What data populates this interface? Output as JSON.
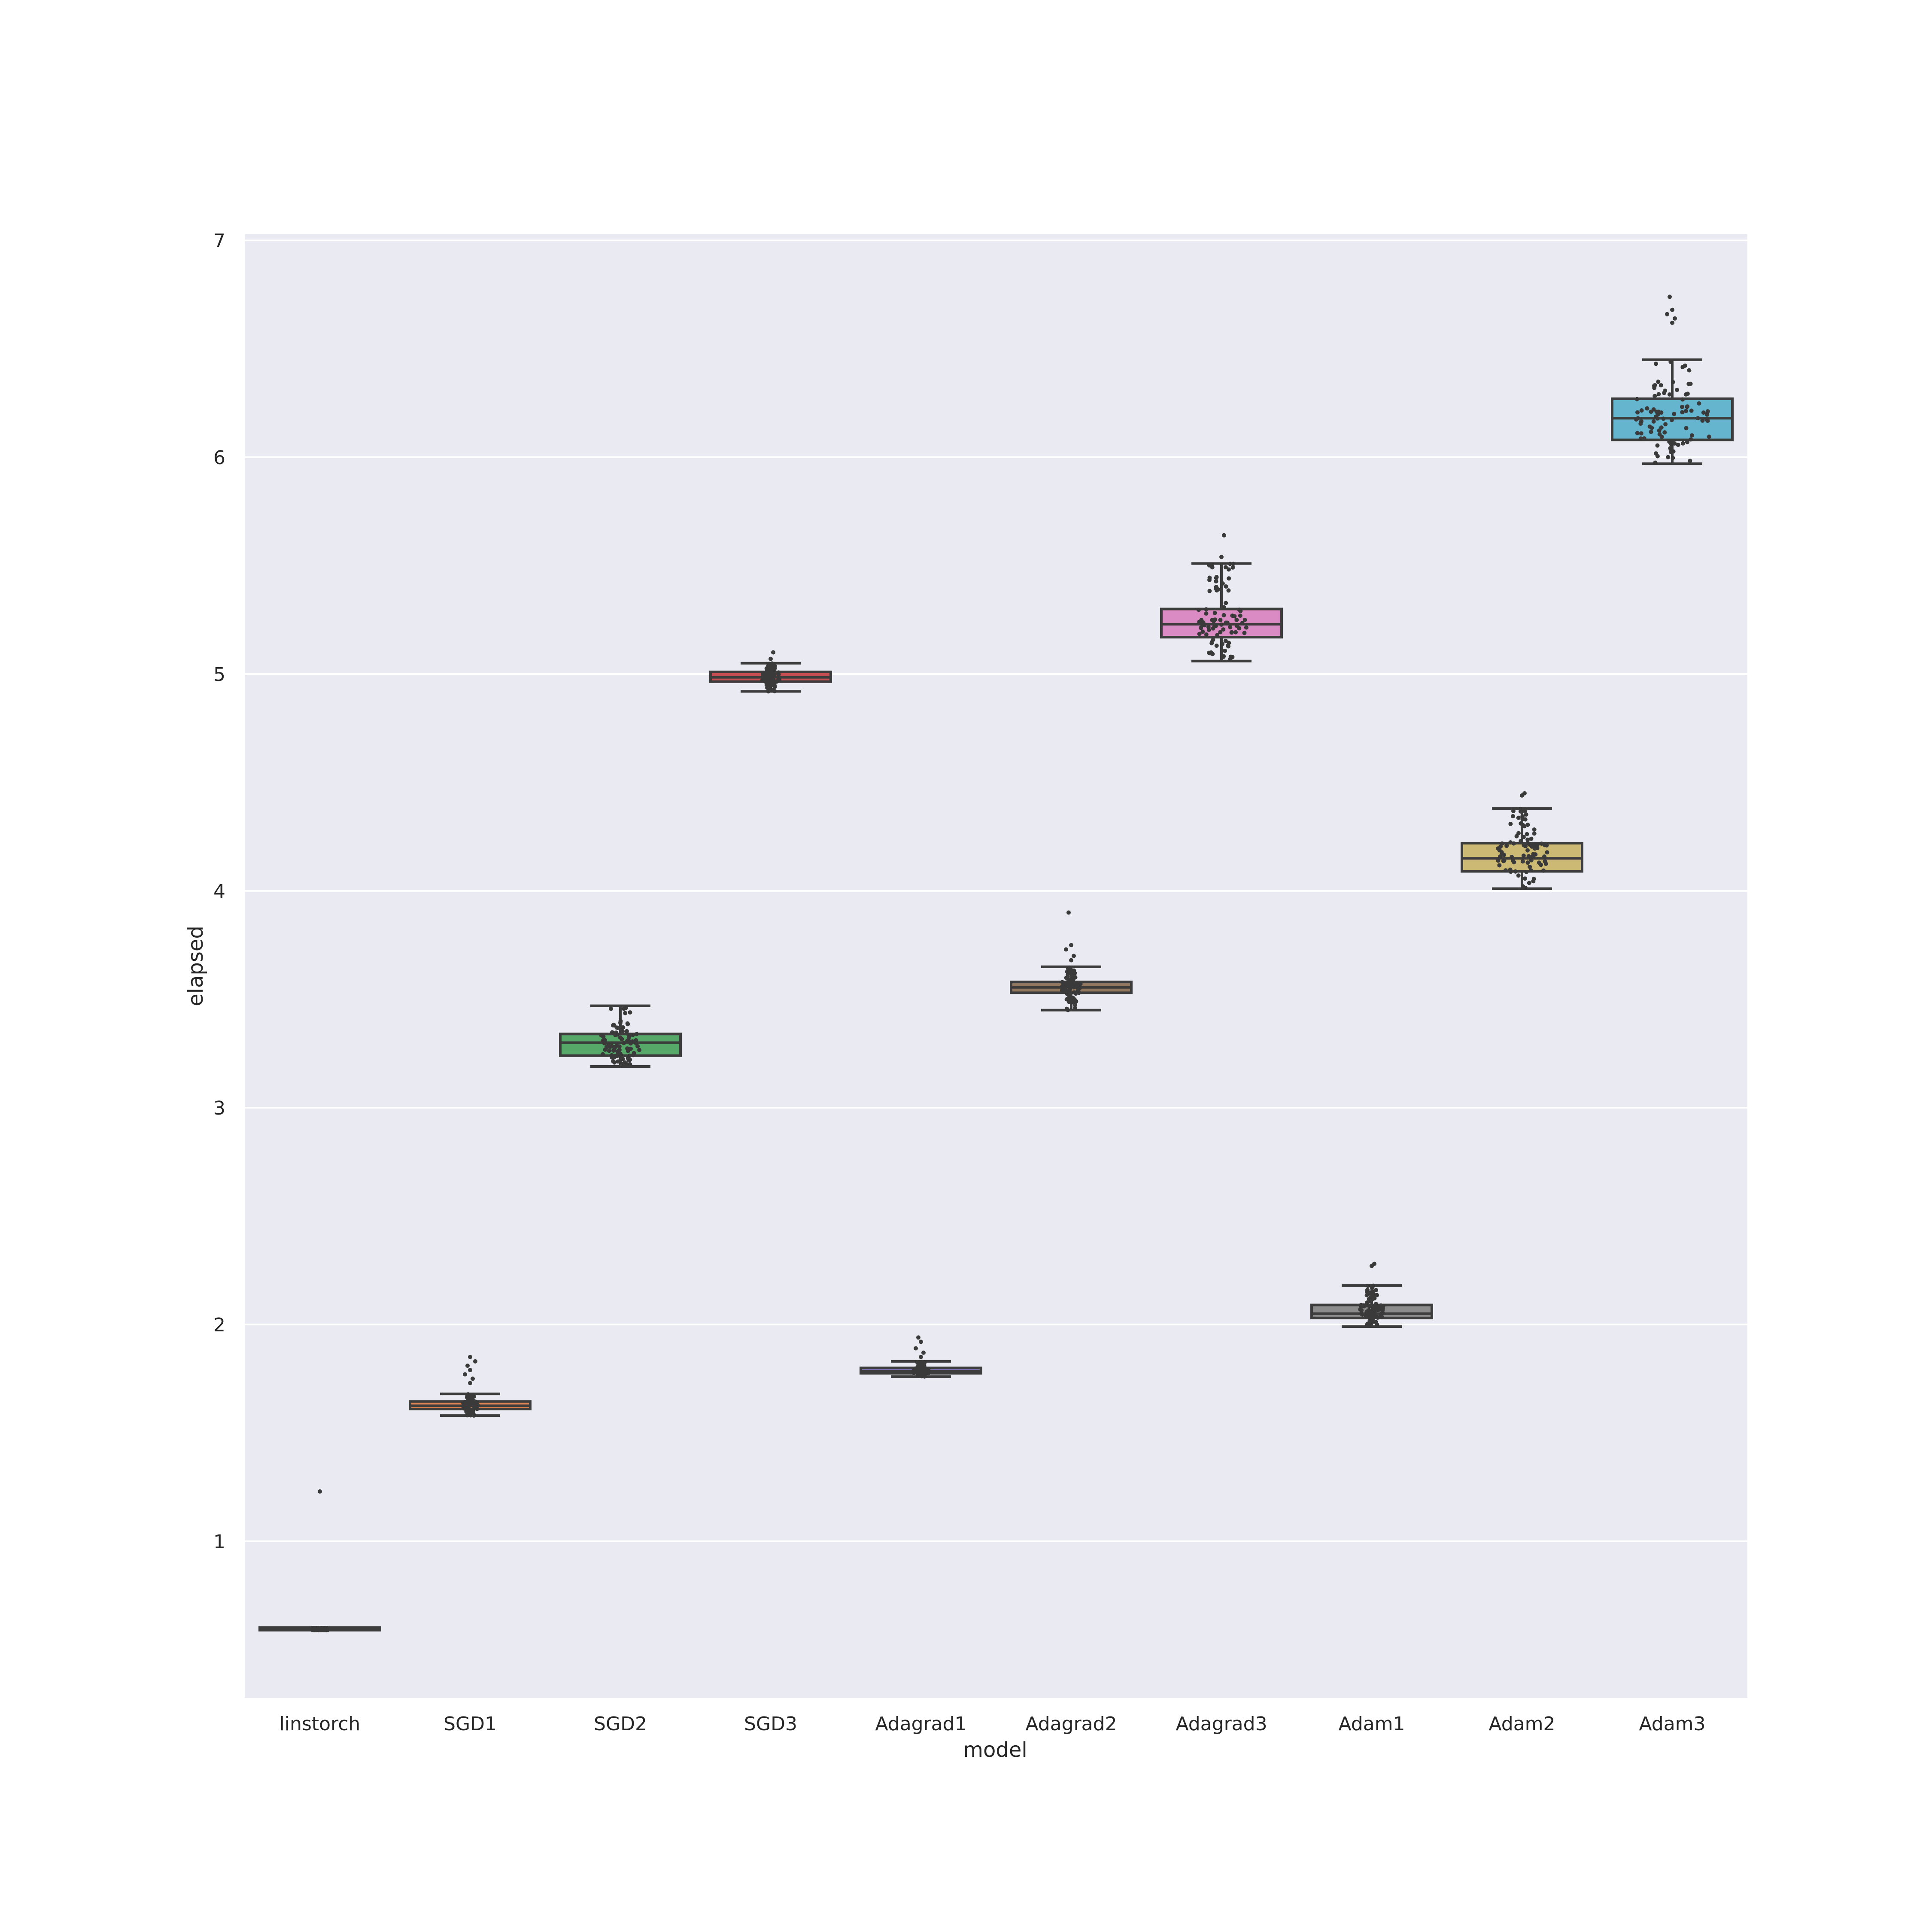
{
  "chart_data": {
    "type": "box",
    "xlabel": "model",
    "ylabel": "elapsed",
    "ylim": [
      0.28,
      7.05
    ],
    "yticks": [
      1,
      2,
      3,
      4,
      5,
      6,
      7
    ],
    "grid": true,
    "categories": [
      "linstorch",
      "SGD1",
      "SGD2",
      "SGD3",
      "Adagrad1",
      "Adagrad2",
      "Adagrad3",
      "Adam1",
      "Adam2",
      "Adam3"
    ],
    "colors": [
      "#4c72b0",
      "#dd8452",
      "#55a868",
      "#c44e52",
      "#8172b3",
      "#937860",
      "#da8bc3",
      "#8c8c8c",
      "#ccb974",
      "#64b5cd"
    ],
    "boxes": [
      {
        "min": 0.59,
        "q1": 0.59,
        "median": 0.595,
        "q3": 0.6,
        "max": 0.6,
        "outliers": [
          1.23
        ]
      },
      {
        "min": 1.58,
        "q1": 1.61,
        "median": 1.625,
        "q3": 1.645,
        "max": 1.68,
        "outliers": [
          1.73,
          1.75,
          1.77,
          1.79,
          1.81,
          1.83,
          1.85
        ]
      },
      {
        "min": 3.19,
        "q1": 3.24,
        "median": 3.3,
        "q3": 3.34,
        "max": 3.47,
        "outliers": []
      },
      {
        "min": 4.92,
        "q1": 4.965,
        "median": 4.985,
        "q3": 5.01,
        "max": 5.05,
        "outliers": [
          5.07,
          5.1
        ]
      },
      {
        "min": 1.76,
        "q1": 1.775,
        "median": 1.785,
        "q3": 1.8,
        "max": 1.83,
        "outliers": [
          1.85,
          1.87,
          1.89,
          1.92,
          1.94
        ]
      },
      {
        "min": 3.45,
        "q1": 3.53,
        "median": 3.555,
        "q3": 3.58,
        "max": 3.65,
        "outliers": [
          3.68,
          3.7,
          3.73,
          3.75,
          3.9
        ]
      },
      {
        "min": 5.06,
        "q1": 5.17,
        "median": 5.23,
        "q3": 5.3,
        "max": 5.51,
        "outliers": [
          5.54,
          5.64
        ]
      },
      {
        "min": 1.99,
        "q1": 2.03,
        "median": 2.05,
        "q3": 2.09,
        "max": 2.18,
        "outliers": [
          2.27,
          2.28
        ]
      },
      {
        "min": 4.01,
        "q1": 4.09,
        "median": 4.15,
        "q3": 4.22,
        "max": 4.38,
        "outliers": [
          4.44,
          4.45
        ]
      },
      {
        "min": 5.97,
        "q1": 6.08,
        "median": 6.18,
        "q3": 6.27,
        "max": 6.45,
        "outliers": [
          6.62,
          6.64,
          6.66,
          6.68,
          6.74
        ]
      }
    ]
  }
}
